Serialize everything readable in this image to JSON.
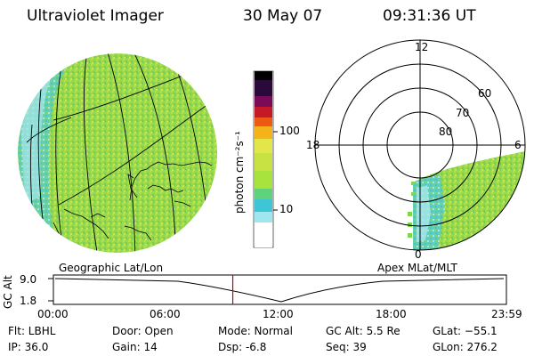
{
  "header": {
    "instrument": "Ultraviolet Imager",
    "date": "30 May 07",
    "time": "09:31:36 UT"
  },
  "colorbar": {
    "unit_label": "photon cm⁻²s⁻¹",
    "tick_100": "100",
    "tick_10": "10",
    "scale": "log",
    "colors": [
      "#ffffff",
      "#a0e6ee",
      "#3fc6d6",
      "#60d27e",
      "#a8e23c",
      "#e2e64a",
      "#f6b21a",
      "#ee5a14",
      "#c41a28",
      "#9a0a55",
      "#3a0a3a",
      "#000000"
    ]
  },
  "polar_plot": {
    "label_12": "12",
    "label_18": "18",
    "label_6": "6",
    "label_0": "0",
    "ring_60": "60",
    "ring_70": "70",
    "ring_80": "80"
  },
  "timeline": {
    "y_axis_label": "GC Alt",
    "y_top": "9.0",
    "y_bottom": "1.8",
    "left_caption": "Geographic Lat/Lon",
    "right_caption": "Apex MLat/MLT",
    "current_time_fraction": 0.396,
    "ticks": [
      "00:00",
      "06:00",
      "12:00",
      "18:00",
      "23:59"
    ],
    "marker_color": "#cc0000"
  },
  "info": {
    "flt": "Flt: LBHL",
    "ip": "IP: 36.0",
    "door": "Door: Open",
    "gain": "Gain: 14",
    "mode": "Mode: Normal",
    "dsp": "Dsp:    -6.8",
    "gcalt": "GC Alt: 5.5 Re",
    "seq": "Seq: 39",
    "glat": "GLat: −55.1",
    "glon": "GLon: 276.2"
  }
}
